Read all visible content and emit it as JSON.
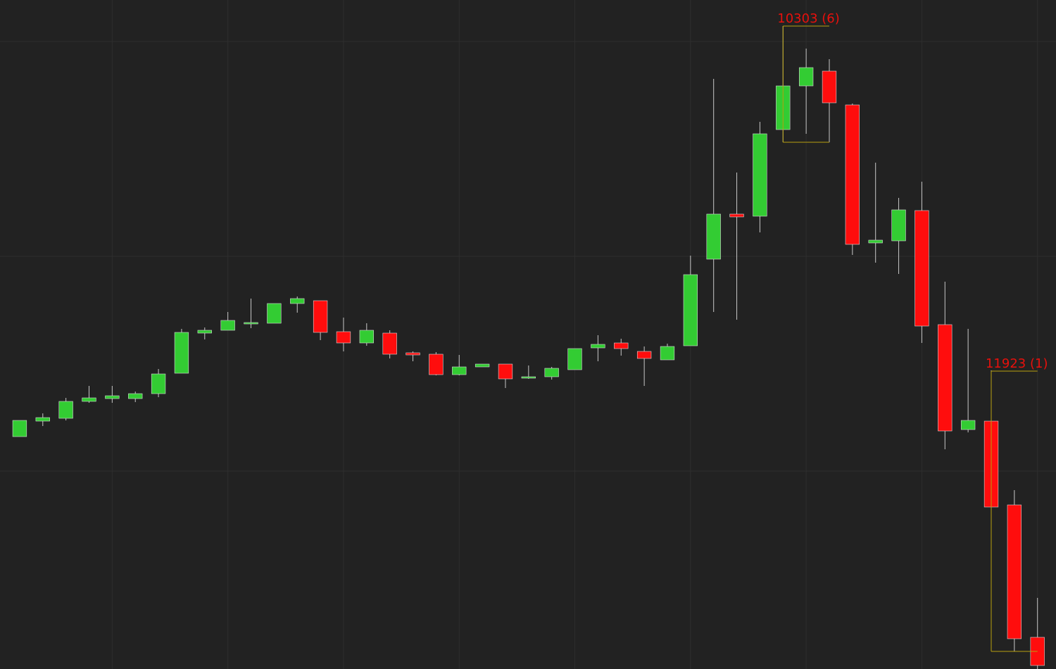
{
  "chart_data": {
    "type": "candlestick",
    "open": [
      330,
      352,
      356,
      380,
      384,
      384,
      391,
      420,
      477,
      481,
      491,
      491,
      519,
      523,
      479,
      463,
      477,
      449,
      447,
      418,
      429,
      433,
      413,
      415,
      425,
      456,
      463,
      451,
      439,
      459,
      582,
      646,
      643,
      766,
      828,
      849,
      801,
      605,
      608,
      651,
      489,
      340,
      352,
      233,
      45
    ],
    "high": [
      353,
      363,
      385,
      402,
      402,
      394,
      426,
      483,
      485,
      507,
      526,
      519,
      529,
      523,
      499,
      491,
      481,
      451,
      450,
      446,
      433,
      433,
      431,
      429,
      455,
      474,
      469,
      458,
      462,
      587,
      838,
      705,
      777,
      913,
      881,
      866,
      803,
      719,
      669,
      692,
      550,
      483,
      424,
      254,
      101
    ],
    "low": [
      330,
      345,
      353,
      378,
      378,
      379,
      386,
      420,
      468,
      481,
      484,
      491,
      506,
      467,
      451,
      459,
      441,
      437,
      417,
      417,
      429,
      399,
      412,
      411,
      425,
      437,
      445,
      402,
      439,
      459,
      507,
      496,
      620,
      748,
      760,
      748,
      588,
      577,
      561,
      463,
      312,
      336,
      205,
      25,
      0
    ],
    "close": [
      353,
      357,
      380,
      385,
      388,
      391,
      419,
      478,
      481,
      495,
      492,
      519,
      526,
      478,
      463,
      481,
      447,
      446,
      418,
      429,
      433,
      412,
      415,
      427,
      455,
      461,
      455,
      441,
      458,
      560,
      646,
      642,
      760,
      828,
      854,
      804,
      603,
      609,
      652,
      487,
      338,
      353,
      230,
      43,
      5
    ],
    "up_color": "#33cc33",
    "down_color": "#ff0d0d",
    "xlim": [
      -0.85,
      44.8
    ],
    "ylim": [
      0,
      950
    ],
    "xticks": [
      4,
      9,
      14,
      19,
      24,
      29,
      34,
      39,
      44
    ],
    "yticks": [
      281,
      586,
      891
    ],
    "grid": true,
    "annotations": [
      {
        "text": "10303 (6)",
        "start": 33,
        "end": 35,
        "high": 913,
        "low": 748
      },
      {
        "text": "11923 (1)",
        "start": 42,
        "end": 44,
        "high": 423,
        "low": 25
      }
    ]
  }
}
